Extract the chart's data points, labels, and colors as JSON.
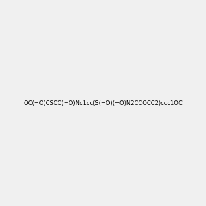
{
  "smiles": "OC(=O)CSC C(=O)Nc1cc(S(=O)(=O)N2CCOCC2)ccc1OC",
  "smiles_correct": "OC(=O)CSCC(=O)Nc1cc(S(=O)(=O)N2CCOCC2)ccc1OC",
  "img_size": [
    300,
    300
  ],
  "background_color": "#f0f0f0",
  "bond_color": "#000000",
  "atom_colors": {
    "O": "#ff0000",
    "N": "#0000ff",
    "S": "#cccc00",
    "H": "#808080",
    "C": "#000000"
  },
  "title": ""
}
